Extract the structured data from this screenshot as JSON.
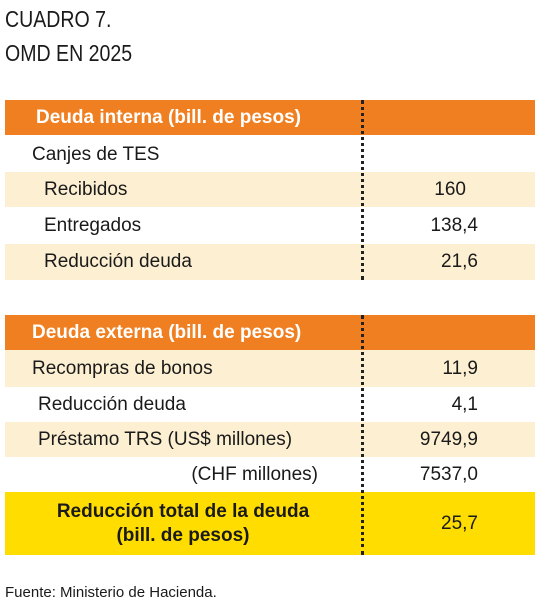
{
  "header": {
    "title": "CUADRO 7.",
    "subtitle": "OMD EN 2025"
  },
  "sections": [
    {
      "heading": "Deuda interna (bill. de pesos)",
      "rows": [
        {
          "label": "Canjes de TES"
        },
        {
          "label": "Recibidos",
          "value": "160"
        },
        {
          "label": "Entregados",
          "value": "138,4"
        },
        {
          "label": "Reducción deuda",
          "value": "21,6"
        }
      ]
    },
    {
      "heading": "Deuda externa (bill. de pesos)",
      "rows": [
        {
          "label": "Recompras de bonos",
          "value": "11,9"
        },
        {
          "label": "Reducción deuda",
          "value": "4,1"
        },
        {
          "label": "Préstamo TRS (US$ millones)",
          "value": "9749,9"
        },
        {
          "label": "(CHF millones)",
          "value": "7537,0"
        }
      ]
    }
  ],
  "total": {
    "label_lines": [
      "Reducción total de la deuda",
      "(bill. de pesos)"
    ],
    "value": "25,7"
  },
  "footer": {
    "source": "Fuente: Ministerio de Hacienda."
  }
}
